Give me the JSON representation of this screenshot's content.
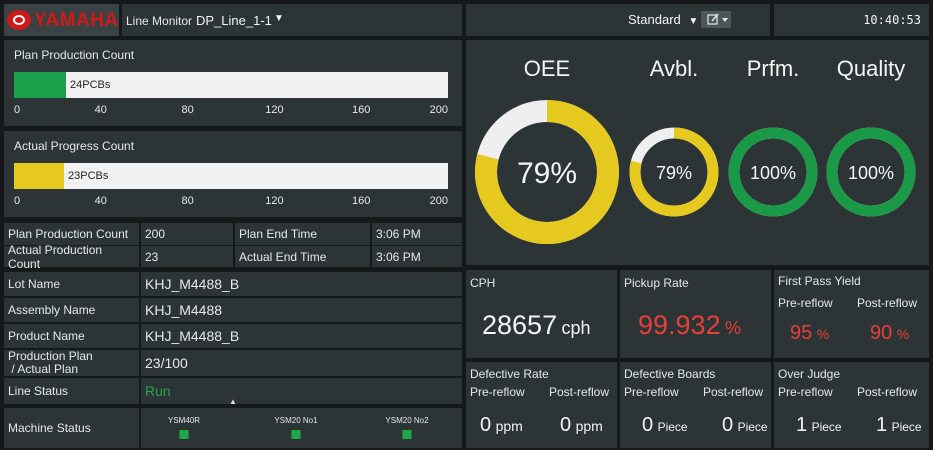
{
  "header": {
    "logo_text": "YAMAHA",
    "title_prefix": "Line Monitor",
    "line_name": "DP_Line_1-1",
    "view_mode": "Standard",
    "clock": "10:40:53"
  },
  "plan_bar": {
    "title": "Plan Production Count",
    "label": "24PCBs",
    "value": 24,
    "max": 200,
    "fill_color": "#19a04a",
    "ticks": [
      "0",
      "40",
      "80",
      "120",
      "160",
      "200"
    ]
  },
  "actual_bar": {
    "title": "Actual Progress Count",
    "label": "23PCBs",
    "value": 23,
    "max": 200,
    "fill_color": "#e6c91f",
    "ticks": [
      "0",
      "40",
      "80",
      "120",
      "160",
      "200"
    ]
  },
  "counts": {
    "plan_count_label": "Plan Production Count",
    "plan_count_value": "200",
    "actual_count_label": "Actual Production Count",
    "actual_count_value": "23",
    "plan_end_label": "Plan End Time",
    "plan_end_value": "3:06 PM",
    "actual_end_label": "Actual End Time",
    "actual_end_value": "3:06 PM"
  },
  "info": {
    "lot_label": "Lot Name",
    "lot_value": "KHJ_M4488_B",
    "assembly_label": "Assembly Name",
    "assembly_value": "KHJ_M4488",
    "product_label": "Product Name",
    "product_value": "KHJ_M4488_B",
    "plan_label_1": "Production Plan",
    "plan_label_2": " / Actual Plan",
    "plan_value": "23/100",
    "status_label": "Line Status",
    "status_value": "Run",
    "status_color": "#1ea84a"
  },
  "machines": {
    "label": "Machine Status",
    "items": [
      {
        "name": "YSM40R",
        "status_color": "#1ea84a"
      },
      {
        "name": "YSM20 No1",
        "status_color": "#1ea84a"
      },
      {
        "name": "YSM20 No2",
        "status_color": "#1ea84a"
      }
    ]
  },
  "gauges": {
    "oee": {
      "label": "OEE",
      "value": 79,
      "text": "79%",
      "color": "#e6c91f"
    },
    "avbl": {
      "label": "Avbl.",
      "value": 79,
      "text": "79%",
      "color": "#e6c91f"
    },
    "prfm": {
      "label": "Prfm.",
      "value": 100,
      "text": "100%",
      "color": "#1a9a47"
    },
    "quality": {
      "label": "Quality",
      "value": 100,
      "text": "100%",
      "color": "#1a9a47"
    },
    "track_color": "#efefef"
  },
  "kpi": {
    "cph_label": "CPH",
    "cph_value": "28657",
    "cph_unit": "cph",
    "pickup_label": "Pickup Rate",
    "pickup_value": "99.932",
    "pickup_unit": "%",
    "fpy_label": "First Pass Yield",
    "fpy_pre_label": "Pre-reflow",
    "fpy_post_label": "Post-reflow",
    "fpy_pre_value": "95",
    "fpy_post_value": "90",
    "fpy_unit": "%",
    "defrate_label": "Defective Rate",
    "defrate_pre_label": "Pre-reflow",
    "defrate_post_label": "Post-reflow",
    "defrate_pre_value": "0",
    "defrate_post_value": "0",
    "defrate_unit": "ppm",
    "defboard_label": "Defective Boards",
    "defboard_pre_label": "Pre-reflow",
    "defboard_post_label": "Post-reflow",
    "defboard_pre_value": "0",
    "defboard_post_value": "0",
    "defboard_unit": "Piece",
    "overjudge_label": "Over Judge",
    "overjudge_pre_label": "Pre-reflow",
    "overjudge_post_label": "Post-reflow",
    "overjudge_pre_value": "1",
    "overjudge_post_value": "1",
    "overjudge_unit": "Piece"
  }
}
